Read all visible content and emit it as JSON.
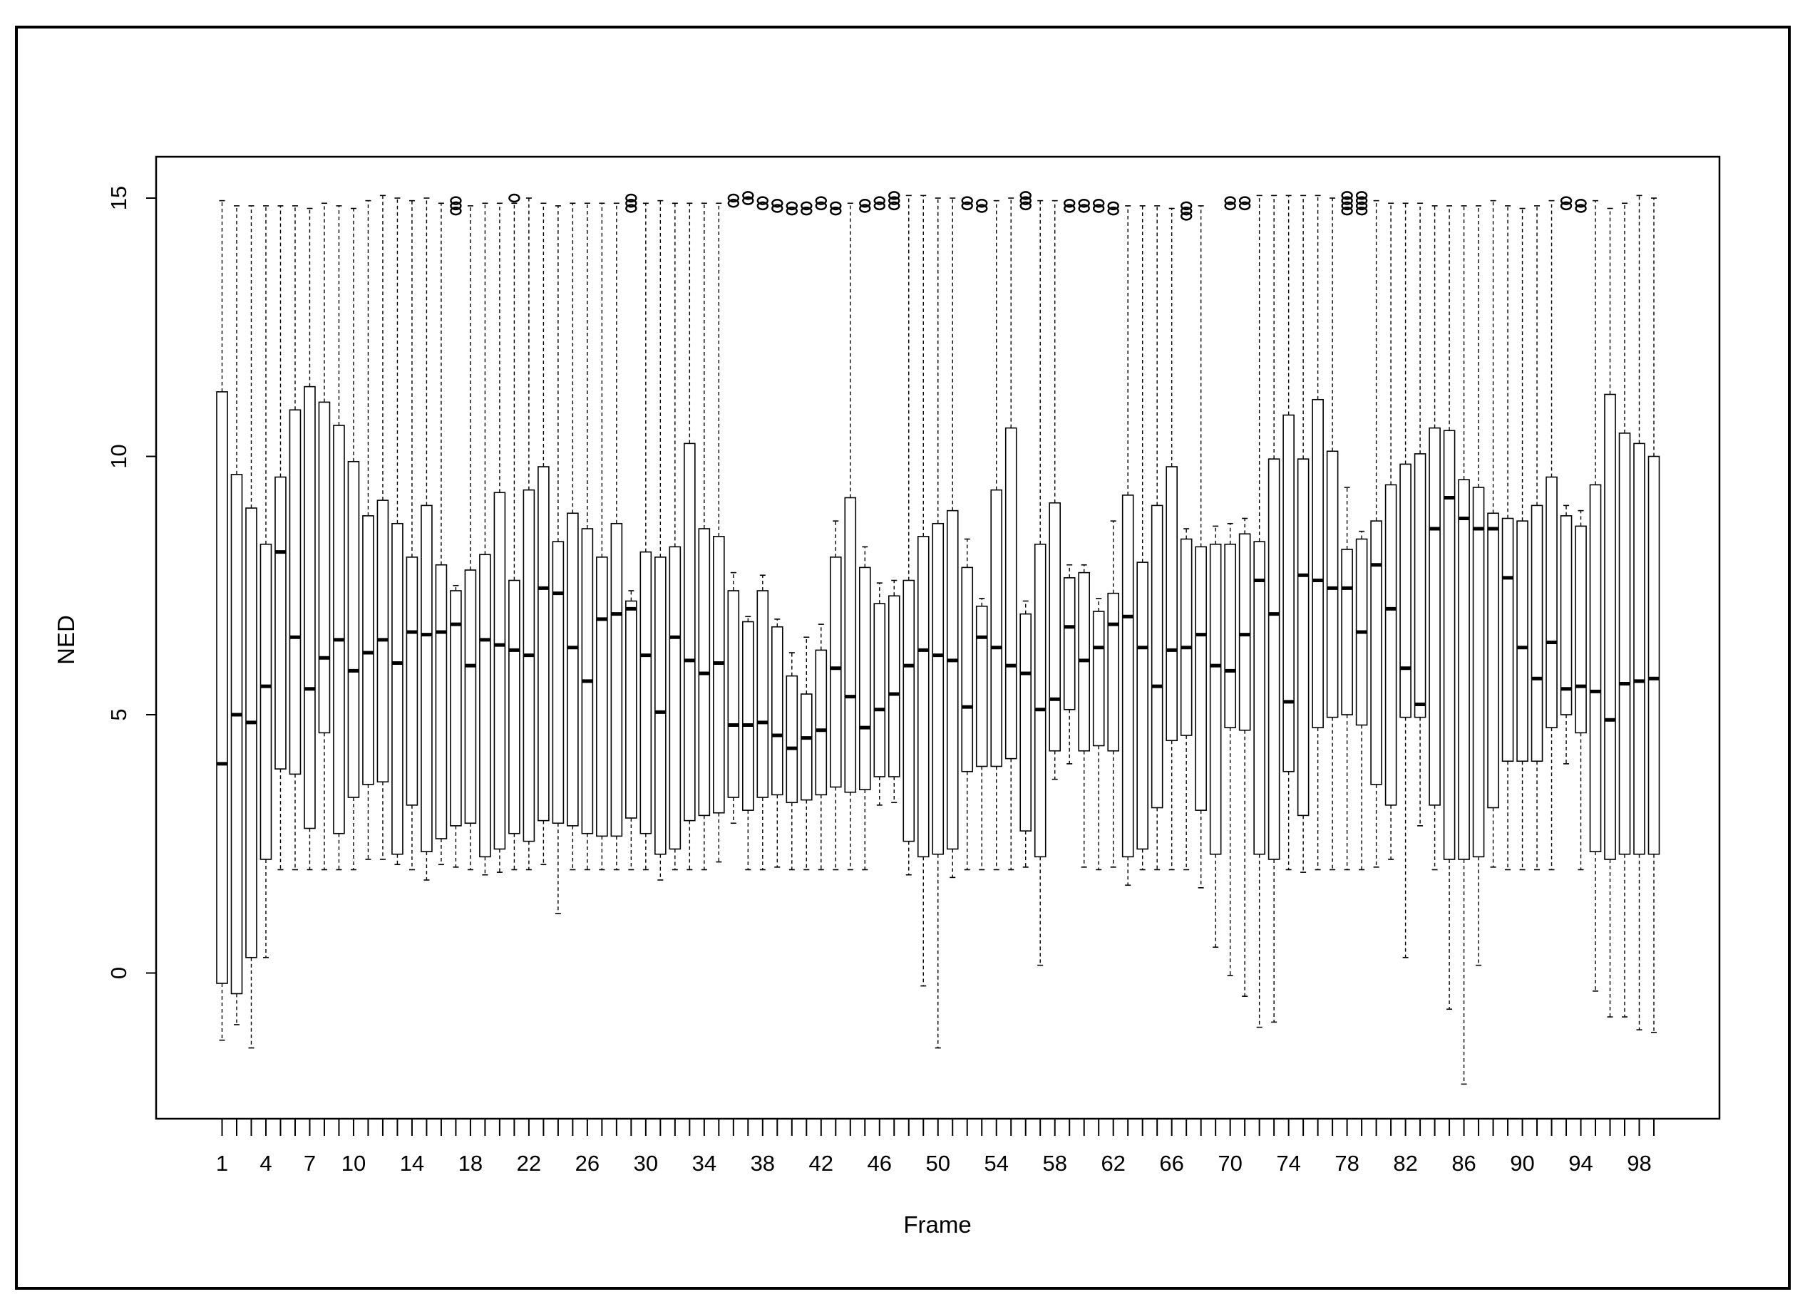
{
  "chart_data": {
    "type": "boxplot",
    "title": "",
    "xlabel": "Frame",
    "ylabel": "NED",
    "ylim": [
      -2.8,
      15.8
    ],
    "y_ticks": [
      0,
      5,
      10,
      15
    ],
    "x_tick_labels": [
      "1",
      "4",
      "7",
      "10",
      "14",
      "18",
      "22",
      "26",
      "30",
      "34",
      "38",
      "42",
      "46",
      "50",
      "54",
      "58",
      "62",
      "66",
      "70",
      "74",
      "78",
      "82",
      "86",
      "90",
      "94",
      "98"
    ],
    "x_tick_labels_at": [
      1,
      4,
      7,
      10,
      14,
      18,
      22,
      26,
      30,
      34,
      38,
      42,
      46,
      50,
      54,
      58,
      62,
      66,
      70,
      74,
      78,
      82,
      86,
      90,
      94,
      98
    ],
    "categories": [
      "1",
      "2",
      "3",
      "4",
      "5",
      "6",
      "7",
      "8",
      "9",
      "10",
      "11",
      "12",
      "13",
      "14",
      "15",
      "16",
      "17",
      "18",
      "19",
      "20",
      "21",
      "22",
      "23",
      "24",
      "25",
      "26",
      "27",
      "28",
      "29",
      "30",
      "31",
      "32",
      "33",
      "34",
      "35",
      "36",
      "37",
      "38",
      "39",
      "40",
      "41",
      "42",
      "43",
      "44",
      "45",
      "46",
      "47",
      "48",
      "49",
      "50",
      "51",
      "52",
      "53",
      "54",
      "55",
      "56",
      "57",
      "58",
      "59",
      "60",
      "61",
      "62",
      "63",
      "64",
      "65",
      "66",
      "67",
      "68",
      "69",
      "70",
      "71",
      "72",
      "73",
      "74",
      "75",
      "76",
      "77",
      "78",
      "79",
      "80",
      "81",
      "82",
      "83",
      "84",
      "85",
      "86",
      "87",
      "88",
      "89",
      "90",
      "91",
      "92",
      "93",
      "94",
      "95",
      "96",
      "97",
      "98",
      "99"
    ],
    "boxes": [
      {
        "low": -1.3,
        "q1": -0.2,
        "median": 4.05,
        "q3": 11.25,
        "high": 14.95,
        "outliers": []
      },
      {
        "low": -1.0,
        "q1": -0.4,
        "median": 5.0,
        "q3": 9.65,
        "high": 14.85,
        "outliers": []
      },
      {
        "low": -1.45,
        "q1": 0.3,
        "median": 4.85,
        "q3": 9.0,
        "high": 14.85,
        "outliers": []
      },
      {
        "low": 0.3,
        "q1": 2.2,
        "median": 5.55,
        "q3": 8.3,
        "high": 14.85,
        "outliers": []
      },
      {
        "low": 2.0,
        "q1": 3.95,
        "median": 8.15,
        "q3": 9.6,
        "high": 14.85,
        "outliers": []
      },
      {
        "low": 2.0,
        "q1": 3.85,
        "median": 6.5,
        "q3": 10.9,
        "high": 14.85,
        "outliers": []
      },
      {
        "low": 2.0,
        "q1": 2.8,
        "median": 5.5,
        "q3": 11.35,
        "high": 14.8,
        "outliers": []
      },
      {
        "low": 2.0,
        "q1": 4.65,
        "median": 6.1,
        "q3": 11.05,
        "high": 14.9,
        "outliers": []
      },
      {
        "low": 2.0,
        "q1": 2.7,
        "median": 6.45,
        "q3": 10.6,
        "high": 14.85,
        "outliers": []
      },
      {
        "low": 2.0,
        "q1": 3.4,
        "median": 5.85,
        "q3": 9.9,
        "high": 14.8,
        "outliers": []
      },
      {
        "low": 2.2,
        "q1": 3.65,
        "median": 6.2,
        "q3": 8.85,
        "high": 14.95,
        "outliers": []
      },
      {
        "low": 2.2,
        "q1": 3.7,
        "median": 6.45,
        "q3": 9.15,
        "high": 15.05,
        "outliers": []
      },
      {
        "low": 2.1,
        "q1": 2.3,
        "median": 6.0,
        "q3": 8.7,
        "high": 15.0,
        "outliers": []
      },
      {
        "low": 2.0,
        "q1": 3.25,
        "median": 6.6,
        "q3": 8.05,
        "high": 14.95,
        "outliers": []
      },
      {
        "low": 1.8,
        "q1": 2.35,
        "median": 6.55,
        "q3": 9.05,
        "high": 15.0,
        "outliers": []
      },
      {
        "low": 2.1,
        "q1": 2.6,
        "median": 6.6,
        "q3": 7.9,
        "high": 14.9,
        "outliers": []
      },
      {
        "low": 2.05,
        "q1": 2.85,
        "median": 6.75,
        "q3": 7.4,
        "high": 7.5,
        "outliers": [
          14.75,
          14.85,
          14.95
        ]
      },
      {
        "low": 2.0,
        "q1": 2.9,
        "median": 5.95,
        "q3": 7.8,
        "high": 14.85,
        "outliers": []
      },
      {
        "low": 1.9,
        "q1": 2.25,
        "median": 6.45,
        "q3": 8.1,
        "high": 14.9,
        "outliers": []
      },
      {
        "low": 1.95,
        "q1": 2.4,
        "median": 6.35,
        "q3": 9.3,
        "high": 14.9,
        "outliers": []
      },
      {
        "low": 2.0,
        "q1": 2.7,
        "median": 6.25,
        "q3": 7.6,
        "high": 14.9,
        "outliers": [
          15.0
        ]
      },
      {
        "low": 2.0,
        "q1": 2.55,
        "median": 6.15,
        "q3": 9.35,
        "high": 15.0,
        "outliers": []
      },
      {
        "low": 2.1,
        "q1": 2.95,
        "median": 7.45,
        "q3": 9.8,
        "high": 14.9,
        "outliers": []
      },
      {
        "low": 1.15,
        "q1": 2.9,
        "median": 7.35,
        "q3": 8.35,
        "high": 14.85,
        "outliers": []
      },
      {
        "low": 2.0,
        "q1": 2.85,
        "median": 6.3,
        "q3": 8.9,
        "high": 14.9,
        "outliers": []
      },
      {
        "low": 2.0,
        "q1": 2.7,
        "median": 5.65,
        "q3": 8.6,
        "high": 14.9,
        "outliers": []
      },
      {
        "low": 2.0,
        "q1": 2.65,
        "median": 6.85,
        "q3": 8.05,
        "high": 14.9,
        "outliers": []
      },
      {
        "low": 2.0,
        "q1": 2.65,
        "median": 6.95,
        "q3": 8.7,
        "high": 14.9,
        "outliers": []
      },
      {
        "low": 2.0,
        "q1": 3.0,
        "median": 7.05,
        "q3": 7.2,
        "high": 7.4,
        "outliers": [
          14.8,
          14.9,
          15.0
        ]
      },
      {
        "low": 2.0,
        "q1": 2.7,
        "median": 6.15,
        "q3": 8.15,
        "high": 14.9,
        "outliers": []
      },
      {
        "low": 1.8,
        "q1": 2.3,
        "median": 5.05,
        "q3": 8.05,
        "high": 14.95,
        "outliers": []
      },
      {
        "low": 2.0,
        "q1": 2.4,
        "median": 6.5,
        "q3": 8.25,
        "high": 14.9,
        "outliers": []
      },
      {
        "low": 2.0,
        "q1": 2.95,
        "median": 6.05,
        "q3": 10.25,
        "high": 14.9,
        "outliers": []
      },
      {
        "low": 2.0,
        "q1": 3.05,
        "median": 5.8,
        "q3": 8.6,
        "high": 14.9,
        "outliers": []
      },
      {
        "low": 2.15,
        "q1": 3.1,
        "median": 6.0,
        "q3": 8.45,
        "high": 14.9,
        "outliers": []
      },
      {
        "low": 2.9,
        "q1": 3.4,
        "median": 4.8,
        "q3": 7.4,
        "high": 7.75,
        "outliers": [
          14.9,
          15.0
        ]
      },
      {
        "low": 2.0,
        "q1": 3.15,
        "median": 4.8,
        "q3": 6.8,
        "high": 6.9,
        "outliers": [
          14.95,
          15.05
        ]
      },
      {
        "low": 2.0,
        "q1": 3.4,
        "median": 4.85,
        "q3": 7.4,
        "high": 7.7,
        "outliers": [
          14.85,
          14.95
        ]
      },
      {
        "low": 2.05,
        "q1": 3.45,
        "median": 4.6,
        "q3": 6.7,
        "high": 6.85,
        "outliers": [
          14.8,
          14.9
        ]
      },
      {
        "low": 2.0,
        "q1": 3.3,
        "median": 4.35,
        "q3": 5.75,
        "high": 6.2,
        "outliers": [
          14.75,
          14.85
        ]
      },
      {
        "low": 2.0,
        "q1": 3.35,
        "median": 4.55,
        "q3": 5.4,
        "high": 6.5,
        "outliers": [
          14.75,
          14.85
        ]
      },
      {
        "low": 2.0,
        "q1": 3.45,
        "median": 4.7,
        "q3": 6.25,
        "high": 6.75,
        "outliers": [
          14.85,
          14.95
        ]
      },
      {
        "low": 2.0,
        "q1": 3.6,
        "median": 5.9,
        "q3": 8.05,
        "high": 8.75,
        "outliers": [
          14.75,
          14.85
        ]
      },
      {
        "low": 2.0,
        "q1": 3.5,
        "median": 5.35,
        "q3": 9.2,
        "high": 14.9,
        "outliers": []
      },
      {
        "low": 2.0,
        "q1": 3.55,
        "median": 4.75,
        "q3": 7.85,
        "high": 8.25,
        "outliers": [
          14.8,
          14.9
        ]
      },
      {
        "low": 3.25,
        "q1": 3.8,
        "median": 5.1,
        "q3": 7.15,
        "high": 7.55,
        "outliers": [
          14.85,
          14.95
        ]
      },
      {
        "low": 3.3,
        "q1": 3.8,
        "median": 5.4,
        "q3": 7.3,
        "high": 7.6,
        "outliers": [
          14.85,
          14.95,
          15.05
        ]
      },
      {
        "low": 1.9,
        "q1": 2.55,
        "median": 5.95,
        "q3": 7.6,
        "high": 15.05,
        "outliers": []
      },
      {
        "low": -0.25,
        "q1": 2.25,
        "median": 6.25,
        "q3": 8.45,
        "high": 15.05,
        "outliers": []
      },
      {
        "low": -1.45,
        "q1": 2.3,
        "median": 6.15,
        "q3": 8.7,
        "high": 15.0,
        "outliers": []
      },
      {
        "low": 1.85,
        "q1": 2.4,
        "median": 6.05,
        "q3": 8.95,
        "high": 15.0,
        "outliers": []
      },
      {
        "low": 2.0,
        "q1": 3.9,
        "median": 5.15,
        "q3": 7.85,
        "high": 8.4,
        "outliers": [
          14.85,
          14.95
        ]
      },
      {
        "low": 2.0,
        "q1": 4.0,
        "median": 6.5,
        "q3": 7.1,
        "high": 7.25,
        "outliers": [
          14.8,
          14.9
        ]
      },
      {
        "low": 2.0,
        "q1": 4.0,
        "median": 6.3,
        "q3": 9.35,
        "high": 14.95,
        "outliers": []
      },
      {
        "low": 2.0,
        "q1": 4.15,
        "median": 5.95,
        "q3": 10.55,
        "high": 15.0,
        "outliers": []
      },
      {
        "low": 2.05,
        "q1": 2.75,
        "median": 5.8,
        "q3": 6.95,
        "high": 7.2,
        "outliers": [
          14.85,
          14.95,
          15.05
        ]
      },
      {
        "low": 0.15,
        "q1": 2.25,
        "median": 5.1,
        "q3": 8.3,
        "high": 14.95,
        "outliers": []
      },
      {
        "low": 3.75,
        "q1": 4.3,
        "median": 5.3,
        "q3": 9.1,
        "high": 14.95,
        "outliers": []
      },
      {
        "low": 4.05,
        "q1": 5.1,
        "median": 6.7,
        "q3": 7.65,
        "high": 7.9,
        "outliers": [
          14.8,
          14.9
        ]
      },
      {
        "low": 2.05,
        "q1": 4.3,
        "median": 6.05,
        "q3": 7.75,
        "high": 7.9,
        "outliers": [
          14.8,
          14.9
        ]
      },
      {
        "low": 2.0,
        "q1": 4.4,
        "median": 6.3,
        "q3": 7.0,
        "high": 7.25,
        "outliers": [
          14.8,
          14.9
        ]
      },
      {
        "low": 2.05,
        "q1": 4.3,
        "median": 6.75,
        "q3": 7.35,
        "high": 8.75,
        "outliers": [
          14.75,
          14.85
        ]
      },
      {
        "low": 1.7,
        "q1": 2.25,
        "median": 6.9,
        "q3": 9.25,
        "high": 14.85,
        "outliers": []
      },
      {
        "low": 2.0,
        "q1": 2.4,
        "median": 6.3,
        "q3": 7.95,
        "high": 14.85,
        "outliers": []
      },
      {
        "low": 2.0,
        "q1": 3.2,
        "median": 5.55,
        "q3": 9.05,
        "high": 14.85,
        "outliers": []
      },
      {
        "low": 2.0,
        "q1": 4.5,
        "median": 6.25,
        "q3": 9.8,
        "high": 14.8,
        "outliers": []
      },
      {
        "low": 2.0,
        "q1": 4.6,
        "median": 6.3,
        "q3": 8.4,
        "high": 8.6,
        "outliers": [
          14.65,
          14.75,
          14.85
        ]
      },
      {
        "low": 1.65,
        "q1": 3.15,
        "median": 6.55,
        "q3": 8.25,
        "high": 14.85,
        "outliers": []
      },
      {
        "low": 0.5,
        "q1": 2.3,
        "median": 5.95,
        "q3": 8.3,
        "high": 8.65,
        "outliers": []
      },
      {
        "low": -0.05,
        "q1": 4.75,
        "median": 5.85,
        "q3": 8.3,
        "high": 8.7,
        "outliers": [
          14.85,
          14.95
        ]
      },
      {
        "low": -0.45,
        "q1": 4.7,
        "median": 6.55,
        "q3": 8.5,
        "high": 8.8,
        "outliers": [
          14.85,
          14.95
        ]
      },
      {
        "low": -1.05,
        "q1": 2.3,
        "median": 7.6,
        "q3": 8.35,
        "high": 15.05,
        "outliers": []
      },
      {
        "low": -0.95,
        "q1": 2.2,
        "median": 6.95,
        "q3": 9.95,
        "high": 15.05,
        "outliers": []
      },
      {
        "low": 2.0,
        "q1": 3.9,
        "median": 5.25,
        "q3": 10.8,
        "high": 15.05,
        "outliers": []
      },
      {
        "low": 1.95,
        "q1": 3.05,
        "median": 7.7,
        "q3": 9.95,
        "high": 15.05,
        "outliers": []
      },
      {
        "low": 2.0,
        "q1": 4.75,
        "median": 7.6,
        "q3": 11.1,
        "high": 15.05,
        "outliers": []
      },
      {
        "low": 2.0,
        "q1": 4.95,
        "median": 7.45,
        "q3": 10.1,
        "high": 15.0,
        "outliers": []
      },
      {
        "low": 2.0,
        "q1": 5.0,
        "median": 7.45,
        "q3": 8.2,
        "high": 9.4,
        "outliers": [
          14.75,
          14.85,
          14.95,
          15.05
        ]
      },
      {
        "low": 2.0,
        "q1": 4.8,
        "median": 6.6,
        "q3": 8.4,
        "high": 8.55,
        "outliers": [
          14.75,
          14.85,
          14.95,
          15.05
        ]
      },
      {
        "low": 2.05,
        "q1": 3.65,
        "median": 7.9,
        "q3": 8.75,
        "high": 14.95,
        "outliers": []
      },
      {
        "low": 2.2,
        "q1": 3.25,
        "median": 7.05,
        "q3": 9.45,
        "high": 14.9,
        "outliers": []
      },
      {
        "low": 0.3,
        "q1": 4.95,
        "median": 5.9,
        "q3": 9.85,
        "high": 14.9,
        "outliers": []
      },
      {
        "low": 2.85,
        "q1": 4.95,
        "median": 5.2,
        "q3": 10.05,
        "high": 14.9,
        "outliers": []
      },
      {
        "low": 2.0,
        "q1": 3.25,
        "median": 8.6,
        "q3": 10.55,
        "high": 14.85,
        "outliers": []
      },
      {
        "low": -0.7,
        "q1": 2.2,
        "median": 9.2,
        "q3": 10.5,
        "high": 14.85,
        "outliers": []
      },
      {
        "low": -2.15,
        "q1": 2.2,
        "median": 8.8,
        "q3": 9.55,
        "high": 14.85,
        "outliers": []
      },
      {
        "low": 0.15,
        "q1": 2.25,
        "median": 8.6,
        "q3": 9.4,
        "high": 14.85,
        "outliers": []
      },
      {
        "low": 2.05,
        "q1": 3.2,
        "median": 8.6,
        "q3": 8.9,
        "high": 14.95,
        "outliers": []
      },
      {
        "low": 2.0,
        "q1": 4.1,
        "median": 7.65,
        "q3": 8.8,
        "high": 14.85,
        "outliers": []
      },
      {
        "low": 2.0,
        "q1": 4.1,
        "median": 6.3,
        "q3": 8.75,
        "high": 14.8,
        "outliers": []
      },
      {
        "low": 2.0,
        "q1": 4.1,
        "median": 5.7,
        "q3": 9.05,
        "high": 14.85,
        "outliers": []
      },
      {
        "low": 2.0,
        "q1": 4.75,
        "median": 6.4,
        "q3": 9.6,
        "high": 14.95,
        "outliers": []
      },
      {
        "low": 4.05,
        "q1": 5.0,
        "median": 5.5,
        "q3": 8.85,
        "high": 9.05,
        "outliers": [
          14.85,
          14.95
        ]
      },
      {
        "low": 2.0,
        "q1": 4.65,
        "median": 5.55,
        "q3": 8.65,
        "high": 8.95,
        "outliers": [
          14.8,
          14.9
        ]
      },
      {
        "low": -0.35,
        "q1": 2.35,
        "median": 5.45,
        "q3": 9.45,
        "high": 14.95,
        "outliers": []
      },
      {
        "low": -0.85,
        "q1": 2.2,
        "median": 4.9,
        "q3": 11.2,
        "high": 14.8,
        "outliers": []
      },
      {
        "low": -0.85,
        "q1": 2.3,
        "median": 5.6,
        "q3": 10.45,
        "high": 14.9,
        "outliers": []
      },
      {
        "low": -1.1,
        "q1": 2.3,
        "median": 5.65,
        "q3": 10.25,
        "high": 15.05,
        "outliers": []
      },
      {
        "low": -1.15,
        "q1": 2.3,
        "median": 5.7,
        "q3": 10.0,
        "high": 15.0,
        "outliers": []
      }
    ]
  }
}
